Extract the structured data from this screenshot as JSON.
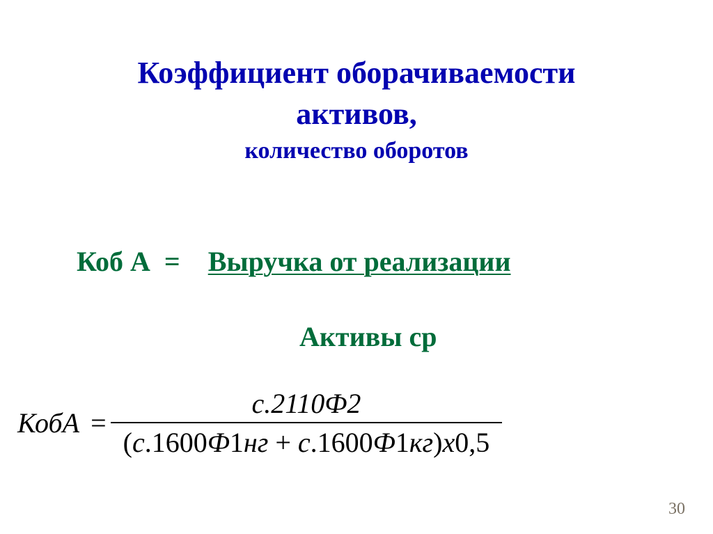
{
  "colors": {
    "title": "#0202b0",
    "word_formula": "#006c3a",
    "math": "#000000",
    "page_num": "#7a7164",
    "background": "#ffffff"
  },
  "title": {
    "line1": "Коэффициент оборачиваемости",
    "line2": "активов,",
    "sub": "количество оборотов",
    "main_fontsize": 44,
    "sub_fontsize": 34
  },
  "word_formula": {
    "lhs": "Коб А",
    "eq": "=",
    "numerator": "Выручка от реализации",
    "denominator": "Активы ср",
    "fontsize": 40
  },
  "math": {
    "lhs": "КобА",
    "eq": "=",
    "numerator": "с.2110Ф2",
    "den_open": "(",
    "den_t1_c": "с",
    "den_t1_num": ".1600",
    "den_t1_F": "Ф",
    "den_t1_one": "1",
    "den_t1_suf": "нг",
    "den_plus": "+",
    "den_t2_c": "с",
    "den_t2_num": ".1600",
    "den_t2_F": "Ф",
    "den_t2_one": "1",
    "den_t2_suf": "кг",
    "den_close": ")",
    "den_x": "х",
    "den_const": "0,5",
    "fontsize": 40
  },
  "page_number": "30"
}
